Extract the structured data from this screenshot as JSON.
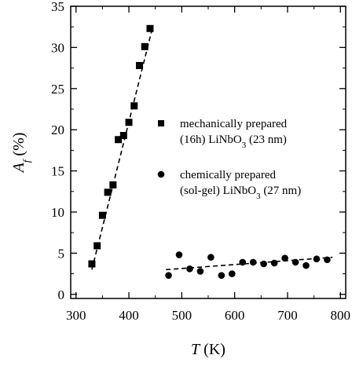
{
  "chart_data": {
    "type": "scatter",
    "xlabel_symbol": "T",
    "xlabel_unit": " (K)",
    "ylabel_symbol": "A",
    "ylabel_subscript": "f",
    "ylabel_unit": " (%)",
    "xlim": [
      290,
      810
    ],
    "ylim": [
      -0.5,
      35
    ],
    "xticks": [
      300,
      400,
      500,
      600,
      700,
      800
    ],
    "yticks": [
      0,
      5,
      10,
      15,
      20,
      25,
      30,
      35
    ],
    "grid": false,
    "legend_position": "right-middle",
    "series": [
      {
        "marker": "square",
        "legend_line1": "mechanically prepared",
        "legend_line2_pre": "(16h) LiNbO",
        "legend_line2_sub": "3",
        "legend_line2_post": " (23 nm)",
        "points": [
          [
            330,
            3.7
          ],
          [
            340,
            5.9
          ],
          [
            350,
            9.6
          ],
          [
            360,
            12.4
          ],
          [
            370,
            13.3
          ],
          [
            380,
            18.8
          ],
          [
            390,
            19.3
          ],
          [
            400,
            20.9
          ],
          [
            410,
            22.9
          ],
          [
            420,
            27.8
          ],
          [
            430,
            30.1
          ],
          [
            440,
            32.3
          ]
        ],
        "fit": [
          [
            330,
            3.0
          ],
          [
            445,
            32.5
          ]
        ]
      },
      {
        "marker": "circle",
        "legend_line1": "chemically prepared",
        "legend_line2_pre": "(sol-gel) LiNbO",
        "legend_line2_sub": "3",
        "legend_line2_post": " (27 nm)",
        "points": [
          [
            475,
            2.3
          ],
          [
            495,
            4.8
          ],
          [
            515,
            3.1
          ],
          [
            535,
            2.8
          ],
          [
            555,
            4.5
          ],
          [
            575,
            2.3
          ],
          [
            595,
            2.5
          ],
          [
            615,
            3.9
          ],
          [
            635,
            3.9
          ],
          [
            655,
            3.7
          ],
          [
            675,
            3.8
          ],
          [
            695,
            4.4
          ],
          [
            715,
            3.9
          ],
          [
            735,
            3.5
          ],
          [
            755,
            4.3
          ],
          [
            775,
            4.2
          ]
        ],
        "fit": [
          [
            470,
            3.0
          ],
          [
            785,
            4.5
          ]
        ]
      }
    ]
  }
}
